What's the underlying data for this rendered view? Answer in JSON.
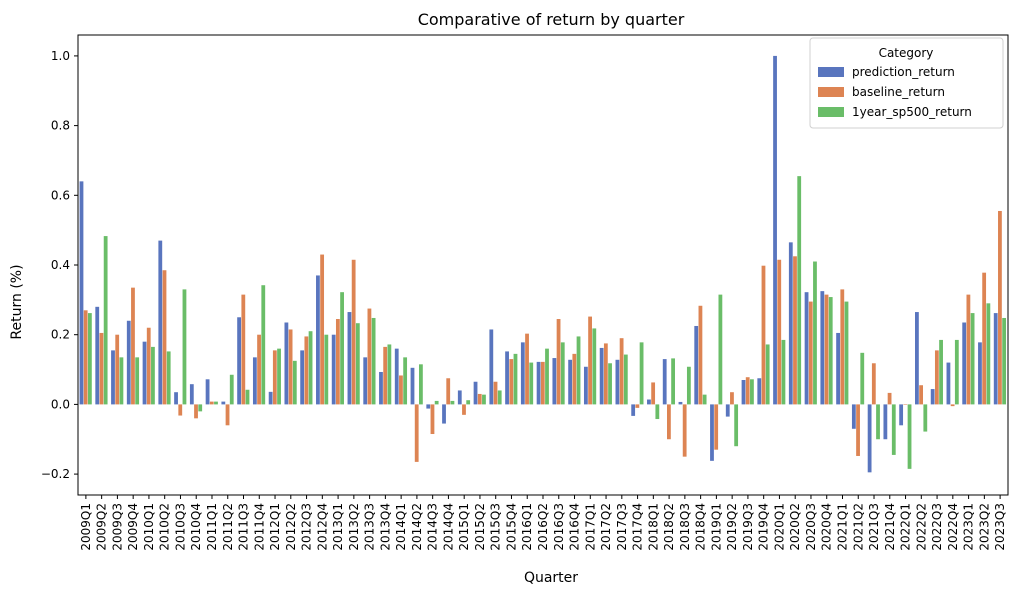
{
  "chart_data": {
    "type": "bar",
    "title": "Comparative of return by quarter",
    "xlabel": "Quarter",
    "ylabel": "Return (%)",
    "ylim": [
      -0.26,
      1.06
    ],
    "yticks": [
      -0.2,
      0.0,
      0.2,
      0.4,
      0.6,
      0.8,
      1.0
    ],
    "ytick_labels": [
      "−0.2",
      "0.0",
      "0.2",
      "0.4",
      "0.6",
      "0.8",
      "1.0"
    ],
    "grid": false,
    "legend": {
      "title": "Category",
      "placement": "top-right"
    },
    "categories": [
      "2009Q1",
      "2009Q2",
      "2009Q3",
      "2009Q4",
      "2010Q1",
      "2010Q2",
      "2010Q3",
      "2010Q4",
      "2011Q1",
      "2011Q2",
      "2011Q3",
      "2011Q4",
      "2012Q1",
      "2012Q2",
      "2012Q3",
      "2012Q4",
      "2013Q1",
      "2013Q2",
      "2013Q3",
      "2013Q4",
      "2014Q1",
      "2014Q2",
      "2014Q3",
      "2014Q4",
      "2015Q1",
      "2015Q2",
      "2015Q3",
      "2015Q4",
      "2016Q1",
      "2016Q2",
      "2016Q3",
      "2016Q4",
      "2017Q1",
      "2017Q2",
      "2017Q3",
      "2017Q4",
      "2018Q1",
      "2018Q2",
      "2018Q3",
      "2018Q4",
      "2019Q1",
      "2019Q2",
      "2019Q3",
      "2019Q4",
      "2020Q1",
      "2020Q2",
      "2020Q3",
      "2020Q4",
      "2021Q1",
      "2021Q2",
      "2021Q3",
      "2021Q4",
      "2022Q1",
      "2022Q2",
      "2022Q3",
      "2022Q4",
      "2023Q1",
      "2023Q2",
      "2023Q3"
    ],
    "series": [
      {
        "name": "prediction_return",
        "color": "#5975BE",
        "values": [
          0.64,
          0.28,
          0.155,
          0.24,
          0.18,
          0.47,
          0.035,
          0.058,
          0.072,
          0.008,
          0.25,
          0.135,
          0.036,
          0.235,
          0.155,
          0.37,
          0.2,
          0.265,
          0.135,
          0.093,
          0.16,
          0.105,
          -0.012,
          -0.055,
          0.04,
          0.065,
          0.215,
          0.152,
          0.178,
          0.122,
          0.133,
          0.128,
          0.108,
          0.162,
          0.128,
          -0.033,
          0.014,
          0.13,
          0.007,
          0.225,
          -0.162,
          -0.035,
          0.07,
          0.075,
          1.0,
          0.465,
          0.322,
          0.325,
          0.205,
          -0.07,
          -0.195,
          -0.1,
          -0.06,
          0.265,
          0.044,
          0.12,
          0.235,
          0.178,
          0.262
        ]
      },
      {
        "name": "baseline_return",
        "color": "#DD8453",
        "values": [
          0.27,
          0.205,
          0.2,
          0.335,
          0.22,
          0.385,
          -0.032,
          -0.04,
          0.008,
          -0.06,
          0.315,
          0.2,
          0.155,
          0.215,
          0.195,
          0.43,
          0.245,
          0.415,
          0.275,
          0.165,
          0.083,
          -0.165,
          -0.085,
          0.075,
          -0.03,
          0.03,
          0.065,
          0.13,
          0.203,
          0.122,
          0.245,
          0.145,
          0.252,
          0.175,
          0.19,
          -0.01,
          0.063,
          -0.1,
          -0.15,
          0.283,
          -0.13,
          0.035,
          0.078,
          0.398,
          0.415,
          0.425,
          0.295,
          0.315,
          0.33,
          -0.148,
          0.118,
          0.033,
          0.0,
          0.055,
          0.155,
          -0.005,
          0.315,
          0.378,
          0.555
        ]
      },
      {
        "name": "1year_sp500_return",
        "color": "#6ABD68",
        "values": [
          0.262,
          0.483,
          0.135,
          0.135,
          0.165,
          0.152,
          0.33,
          -0.02,
          0.008,
          0.085,
          0.042,
          0.342,
          0.16,
          0.125,
          0.21,
          0.2,
          0.322,
          0.233,
          0.248,
          0.172,
          0.135,
          0.115,
          0.01,
          0.01,
          0.012,
          0.028,
          0.04,
          0.145,
          0.12,
          0.16,
          0.178,
          0.195,
          0.218,
          0.118,
          0.143,
          0.178,
          -0.042,
          0.132,
          0.108,
          0.028,
          0.315,
          -0.12,
          0.072,
          0.172,
          0.185,
          0.655,
          0.41,
          0.308,
          0.295,
          0.148,
          -0.1,
          -0.145,
          -0.185,
          -0.078,
          0.185,
          0.185,
          0.262,
          0.29,
          0.248
        ]
      }
    ]
  }
}
